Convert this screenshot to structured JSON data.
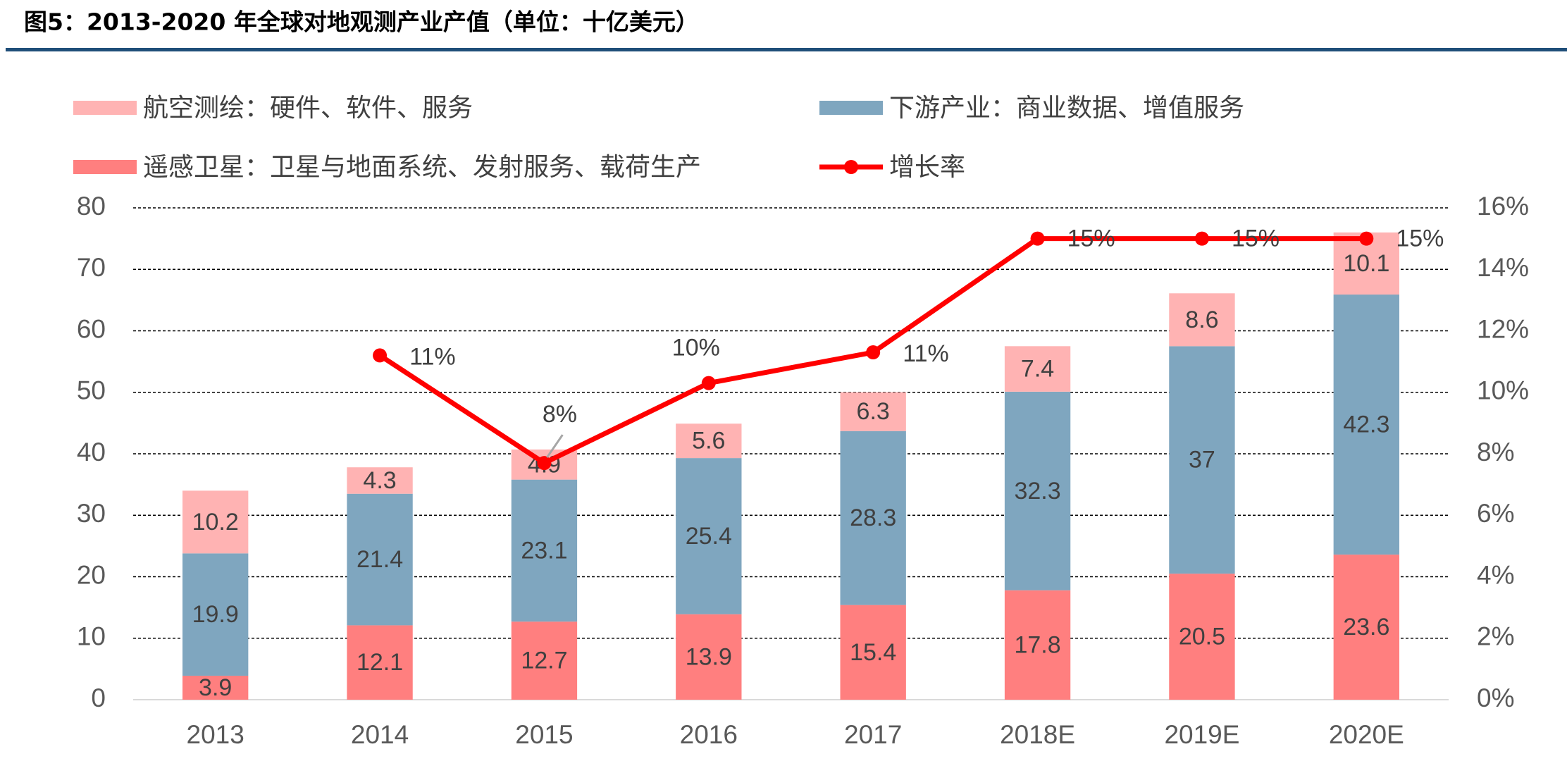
{
  "chart_data": {
    "type": "stacked-bar-line",
    "title": "图5：2013-2020 年全球对地观测产业产值（单位：十亿美元）",
    "categories": [
      "2013",
      "2014",
      "2015",
      "2016",
      "2017",
      "2018E",
      "2019E",
      "2020E"
    ],
    "series": [
      {
        "name": "遥感卫星：卫星与地面系统、发射服务、载荷生产",
        "color": "#ff7f7f",
        "values": [
          3.9,
          12.1,
          12.7,
          13.9,
          15.4,
          17.8,
          20.5,
          23.6
        ]
      },
      {
        "name": "下游产业：商业数据、增值服务",
        "color": "#7fa6bf",
        "values": [
          19.9,
          21.4,
          23.1,
          25.4,
          28.3,
          32.3,
          37,
          42.3
        ]
      },
      {
        "name": "航空测绘：硬件、软件、服务",
        "color": "#ffb3b3",
        "values": [
          10.2,
          4.3,
          4.9,
          5.6,
          6.3,
          7.4,
          8.6,
          10.1
        ]
      },
      {
        "name": "增长率",
        "color": "#ff0000",
        "axis": "y2",
        "type": "line",
        "values": [
          null,
          11.2,
          7.7,
          10.3,
          11.3,
          15.0,
          15.0,
          15.0
        ],
        "value_labels": [
          null,
          "11%",
          "8%",
          "10%",
          "11%",
          "15%",
          "15%",
          "15%"
        ]
      }
    ],
    "ylim": [
      0,
      80
    ],
    "yticks": [
      0,
      10,
      20,
      30,
      40,
      50,
      60,
      70,
      80
    ],
    "y2lim": [
      0,
      16
    ],
    "y2ticks": [
      {
        "value": 0,
        "label": "0%"
      },
      {
        "value": 2,
        "label": "2%"
      },
      {
        "value": 4,
        "label": "4%"
      },
      {
        "value": 6,
        "label": "6%"
      },
      {
        "value": 8,
        "label": "8%"
      },
      {
        "value": 10,
        "label": "10%"
      },
      {
        "value": 12,
        "label": "12%"
      },
      {
        "value": 14,
        "label": "14%"
      },
      {
        "value": 16,
        "label": "16%"
      }
    ],
    "grid": true
  }
}
